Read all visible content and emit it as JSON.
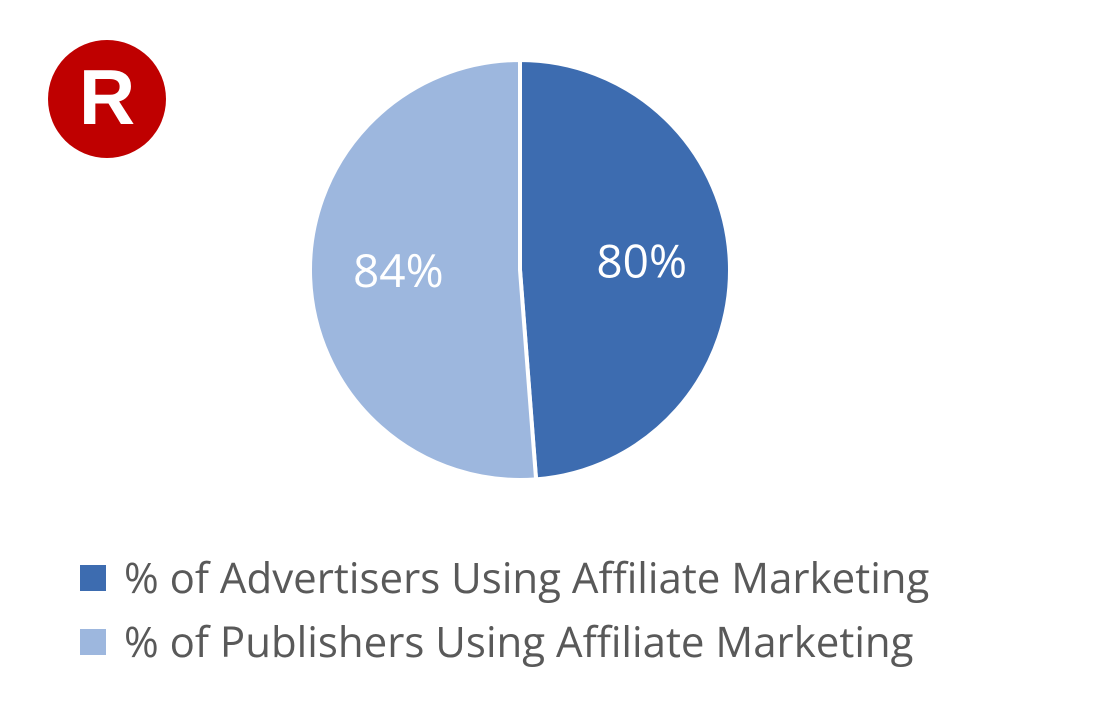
{
  "logo": {
    "letter": "R",
    "background_color": "#bf0000",
    "letter_color": "#ffffff"
  },
  "chart": {
    "type": "pie",
    "background_color": "#ffffff",
    "slice_gap_color": "#ffffff",
    "slice_gap_width": 4,
    "radius": 210,
    "slices": [
      {
        "label": "% of Advertisers Using Affiliate Marketing",
        "value": 80,
        "display": "80%",
        "color": "#3d6cb0",
        "label_fontsize": 46,
        "label_color": "#ffffff"
      },
      {
        "label": "% of Publishers Using Affiliate Marketing",
        "value": 84,
        "display": "84%",
        "color": "#9db7de",
        "label_fontsize": 46,
        "label_color": "#ffffff"
      }
    ]
  },
  "legend": {
    "items": [
      {
        "swatch_color": "#3d6cb0",
        "text": "% of Advertisers Using Affiliate Marketing"
      },
      {
        "swatch_color": "#9db7de",
        "text": "% of Publishers Using Affiliate Marketing"
      }
    ],
    "text_color": "#595959",
    "text_fontsize": 42,
    "swatch_size": 26
  }
}
